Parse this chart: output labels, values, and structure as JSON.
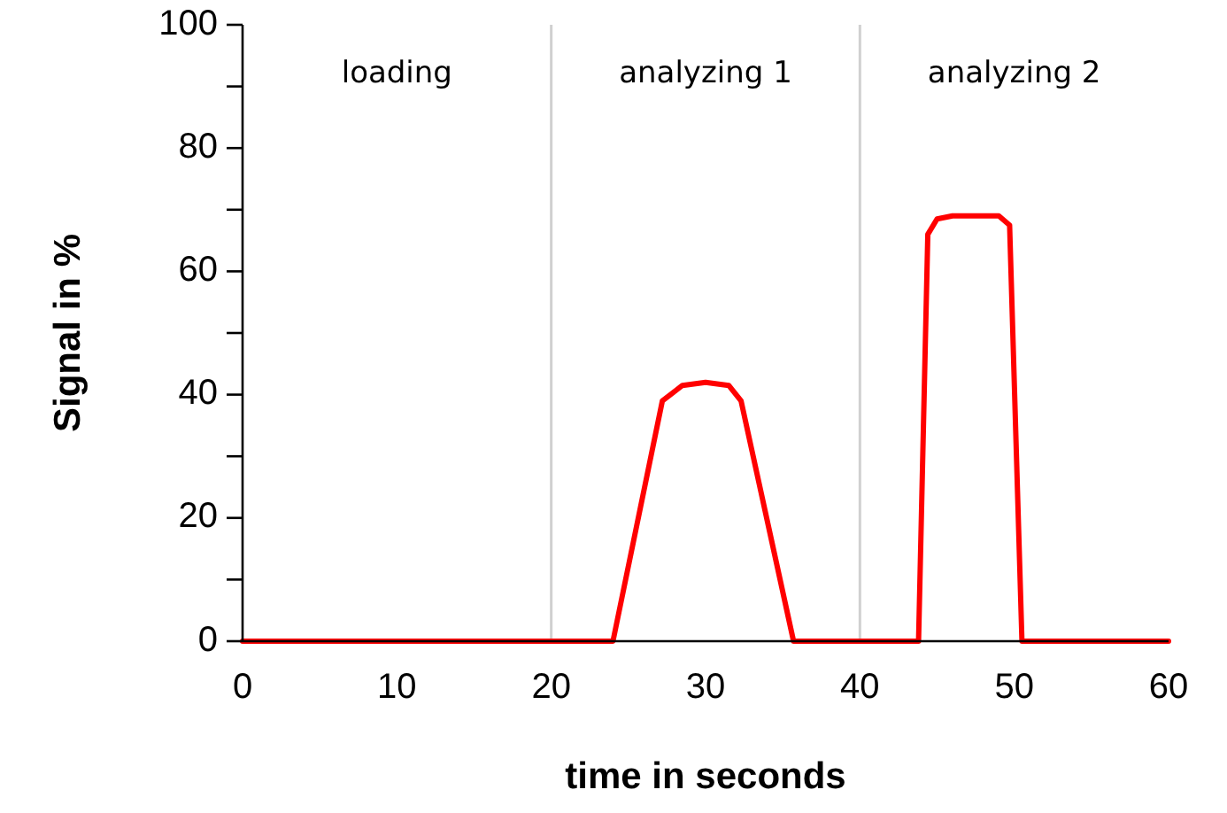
{
  "chart_data": {
    "type": "line",
    "xlabel": "time in seconds",
    "ylabel": "Signal in %",
    "x": [
      0,
      24,
      27.2,
      28.5,
      30,
      31.5,
      32.3,
      35.7,
      43.8,
      44.4,
      45,
      46,
      49,
      49.7,
      50.5,
      60
    ],
    "series": [
      {
        "color": "#ff0000",
        "values": [
          0,
          0,
          39,
          41.5,
          42,
          41.5,
          39,
          0,
          0,
          66,
          68.5,
          69,
          69,
          67.5,
          0,
          0
        ]
      }
    ],
    "xlim": [
      0,
      60
    ],
    "xticks": [
      0,
      10,
      20,
      30,
      40,
      50,
      60
    ],
    "ylim": [
      0,
      100
    ],
    "yticks": [
      0,
      {
        "value": 10,
        "label": null
      },
      20,
      {
        "value": 30,
        "label": null
      },
      40,
      {
        "value": 50,
        "label": null
      },
      60,
      {
        "value": 70,
        "label": null
      },
      80,
      {
        "value": 90,
        "label": null
      },
      100
    ],
    "ref_lines": [
      {
        "axis": "x",
        "value": 20,
        "color": "#d0d0d0"
      },
      {
        "axis": "x",
        "value": 40,
        "color": "#d0d0d0"
      }
    ],
    "annotations": [
      "loading",
      "analyzing 1",
      "analyzing 2"
    ],
    "grid": false,
    "marker": "none",
    "line_style": "solid"
  }
}
